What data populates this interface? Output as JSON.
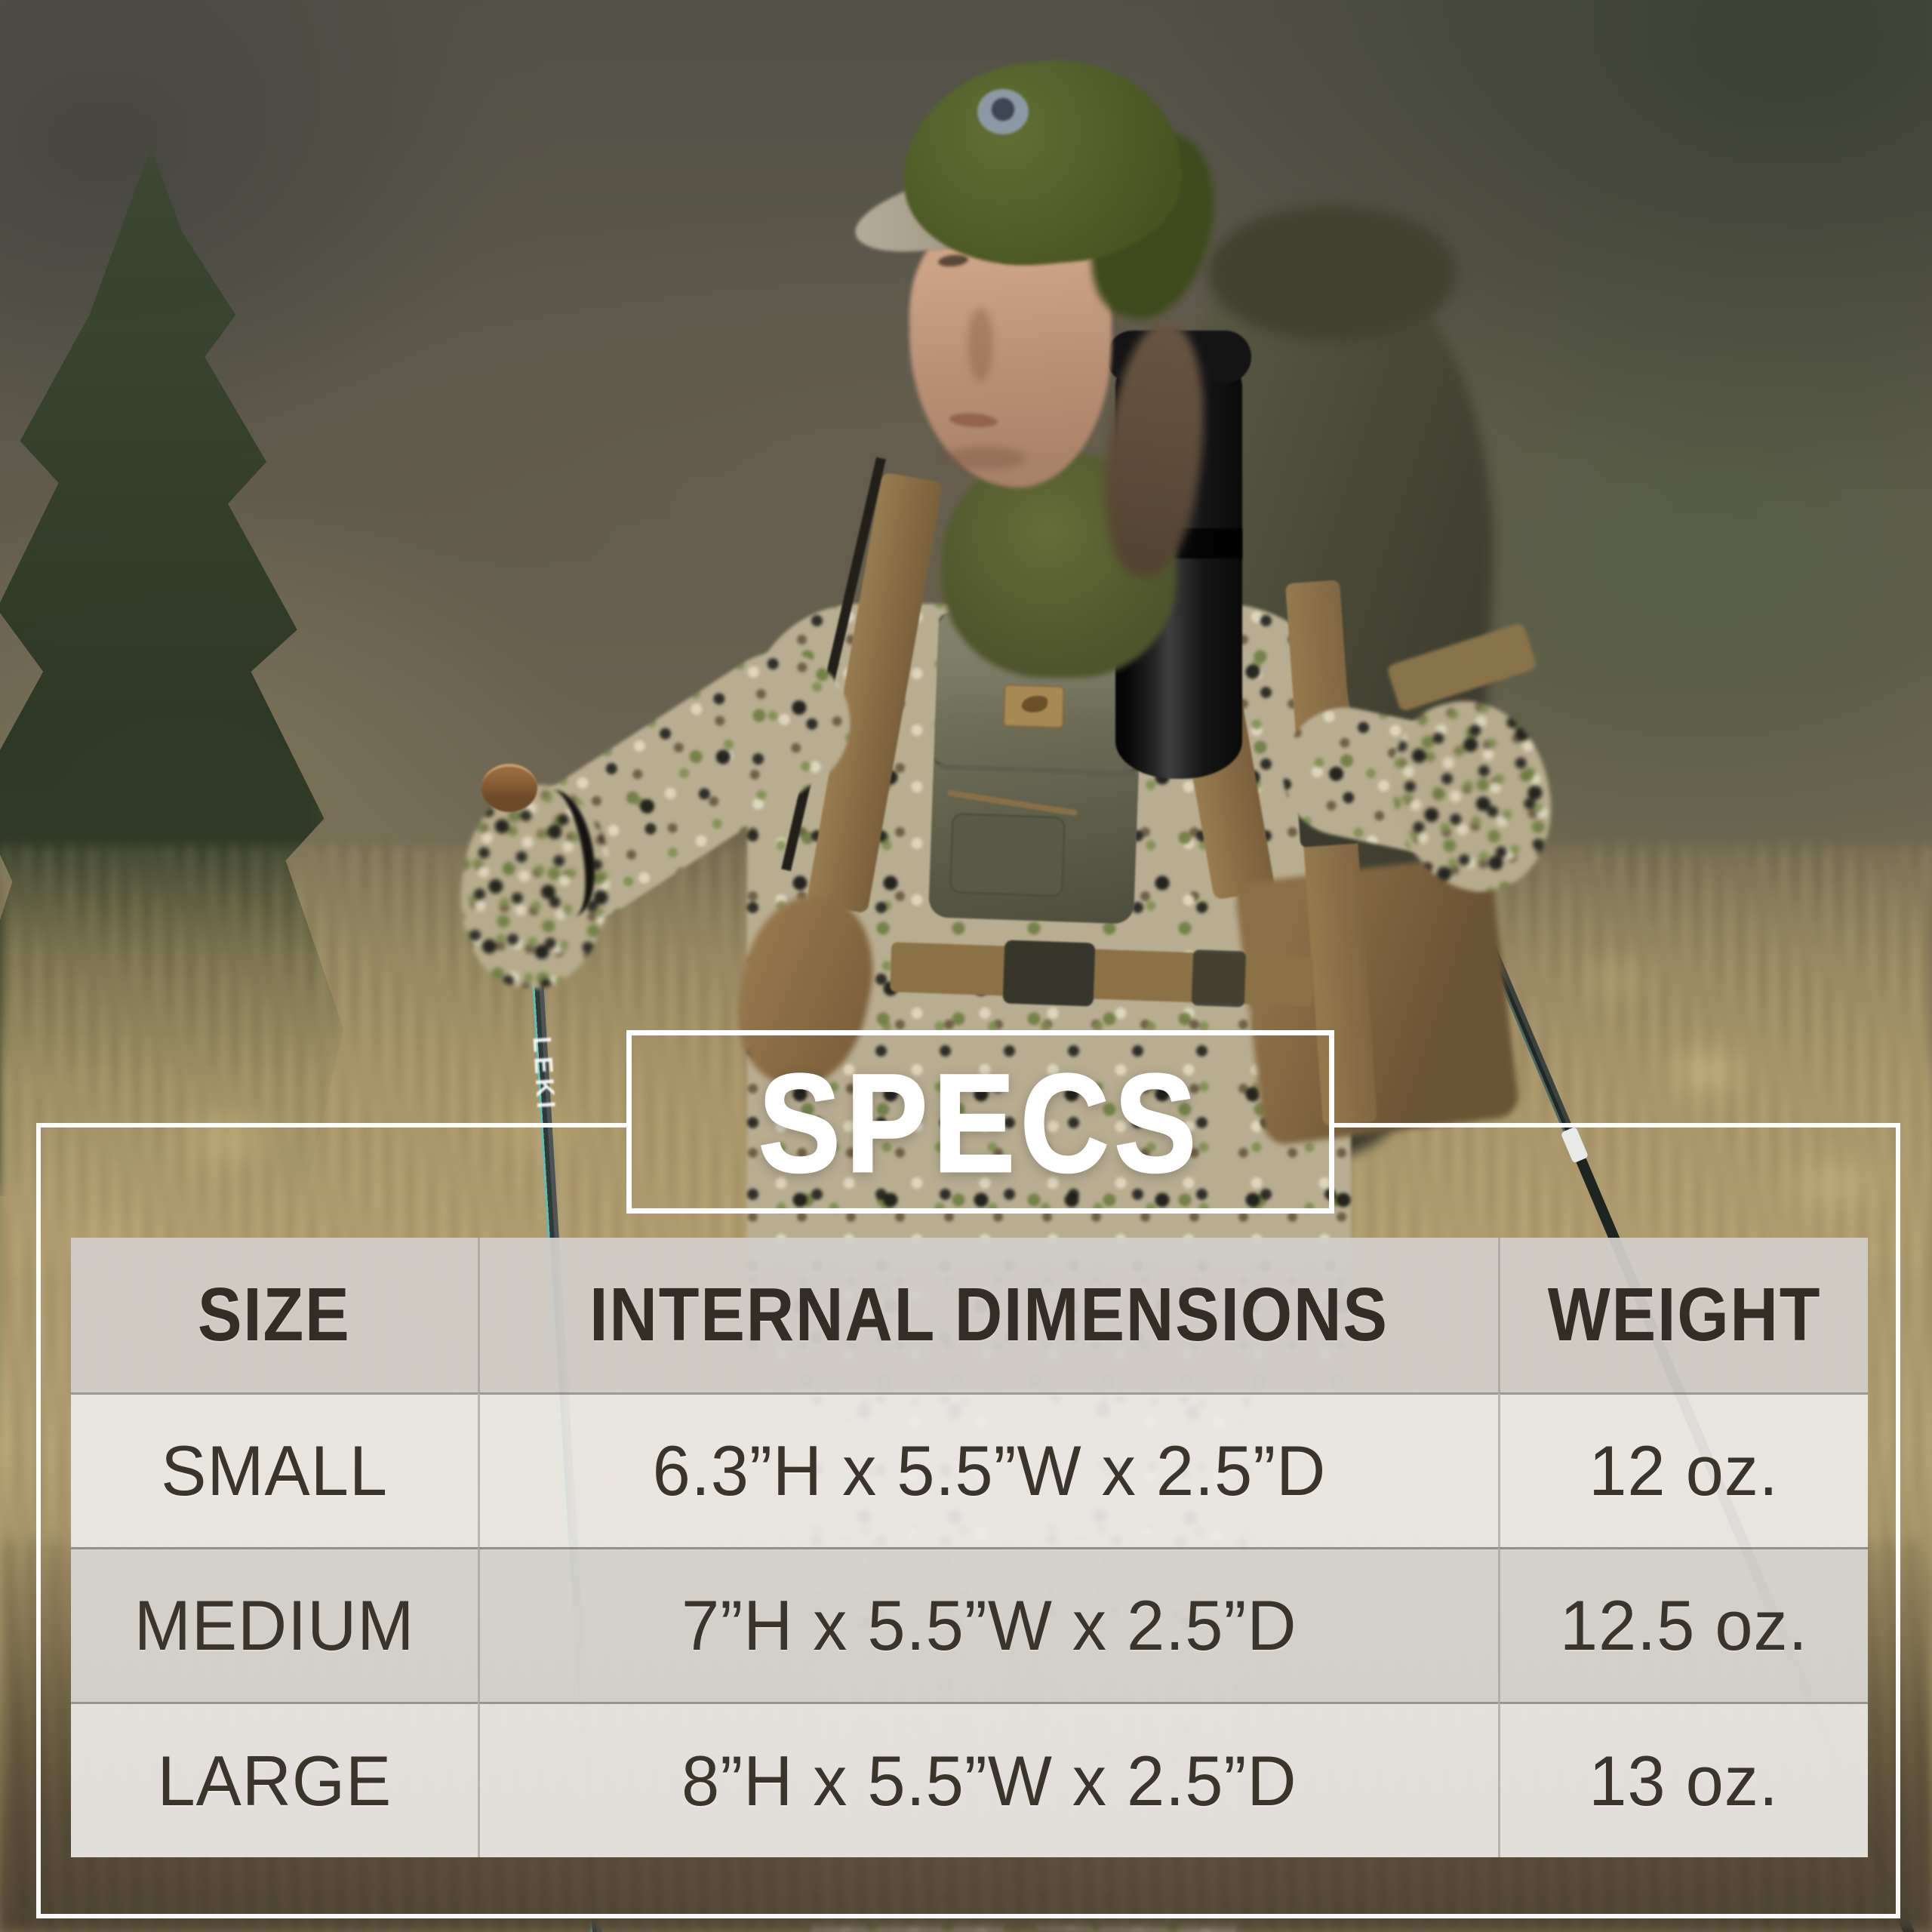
{
  "title": "SPECS",
  "spec_table": {
    "columns": [
      "SIZE",
      "INTERNAL DIMENSIONS",
      "WEIGHT"
    ],
    "rows": [
      {
        "size": "SMALL",
        "dimensions": "6.3”H x 5.5”W x 2.5”D",
        "weight": "12 oz."
      },
      {
        "size": "MEDIUM",
        "dimensions": "7”H x 5.5”W x 2.5”D",
        "weight": "12.5 oz."
      },
      {
        "size": "LARGE",
        "dimensions": "8”H x 5.5”W x 2.5”D",
        "weight": "13 oz."
      }
    ]
  },
  "photo": {
    "pole_brand": "LEKI"
  },
  "colors": {
    "frame_white": "#ffffff",
    "header_bg": "#d1cec9",
    "row_bg": "#eeece8",
    "row_alt_bg": "#d9d7d3",
    "table_text": "#362f27",
    "title_text": "#ffffff"
  }
}
